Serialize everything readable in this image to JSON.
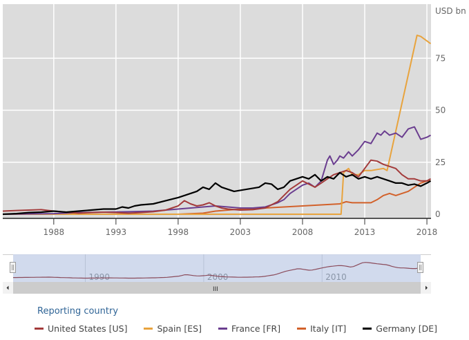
{
  "chart_data": {
    "type": "line",
    "unit_label": "USD bn",
    "ylim": [
      0,
      101
    ],
    "xlim": [
      1983.9,
      2018.33
    ],
    "y_ticks": [
      "0",
      "25",
      "50",
      "75"
    ],
    "y_tick_values": [
      0,
      25,
      50,
      75
    ],
    "x_ticks": [
      "1988",
      "1993",
      "1998",
      "2003",
      "2008",
      "2013",
      "2018"
    ],
    "x_tick_values": [
      1988,
      1993,
      1998,
      2003,
      2008,
      2013,
      2018
    ],
    "grid": true,
    "legend_title": "Reporting country",
    "legend_position": "bottom",
    "series": [
      {
        "name": "United States [US]",
        "color": "#a33a3a",
        "x": [
          1983.9,
          1985,
          1986,
          1987,
          1988,
          1989,
          1990,
          1991,
          1992,
          1993,
          1994,
          1995,
          1996,
          1997,
          1998,
          1998.5,
          1999,
          1999.5,
          2000,
          2000.5,
          2001,
          2001.5,
          2002,
          2003,
          2004,
          2005,
          2006,
          2006.5,
          2007,
          2007.5,
          2008,
          2008.5,
          2009,
          2009.5,
          2010,
          2010.5,
          2011,
          2011.5,
          2012,
          2012.5,
          2013,
          2013.5,
          2014,
          2014.5,
          2015,
          2015.5,
          2016,
          2016.5,
          2017,
          2017.5,
          2018,
          2018.3
        ],
        "values": [
          1.5,
          1.8,
          2,
          2.2,
          1.5,
          1,
          0.5,
          0.8,
          1,
          0.8,
          0.5,
          0.8,
          1.2,
          2,
          4,
          6.5,
          5,
          4,
          4.5,
          5.5,
          4,
          3,
          2.5,
          2,
          2.2,
          3,
          6,
          9,
          12,
          14,
          16,
          14.5,
          13,
          15,
          17,
          19,
          20,
          21,
          20,
          18,
          22,
          26,
          25.5,
          24,
          23,
          22,
          19,
          17,
          17,
          16,
          16,
          17
        ]
      },
      {
        "name": "Spain [ES]",
        "color": "#e8a33d",
        "x": [
          1983.9,
          1990,
          2000,
          2005,
          2008,
          2011.1,
          2011.3,
          2011.7,
          2012,
          2012.5,
          2013,
          2013.5,
          2014,
          2014.5,
          2014.8,
          2017.2,
          2017.5,
          2018.3
        ],
        "values": [
          0,
          0,
          0,
          0,
          0,
          0,
          20,
          22,
          19,
          19,
          21,
          21,
          21.5,
          22,
          21,
          86,
          85.5,
          82
        ]
      },
      {
        "name": "France [FR]",
        "color": "#6a3d8f",
        "x": [
          1983.9,
          1988,
          1990,
          1992,
          1994,
          1996,
          1998,
          1999,
          2000,
          2001,
          2002,
          2003,
          2004,
          2005,
          2006,
          2006.5,
          2007,
          2007.5,
          2008,
          2008.5,
          2009,
          2009.5,
          2010,
          2010.2,
          2010.5,
          2010.8,
          2011,
          2011.3,
          2011.7,
          2012,
          2012.5,
          2013,
          2013.5,
          2014,
          2014.3,
          2014.6,
          2015,
          2015.5,
          2016,
          2016.5,
          2017,
          2017.5,
          2018,
          2018.3
        ],
        "values": [
          0,
          0.3,
          0.8,
          1,
          1.2,
          1.5,
          2.5,
          3,
          3.5,
          4,
          3.5,
          3,
          3,
          3.5,
          5.5,
          7,
          10,
          12,
          14,
          15,
          13,
          16,
          26,
          28,
          24,
          26,
          28,
          27,
          30,
          28,
          31,
          35,
          34,
          39,
          38,
          40,
          38,
          39,
          37,
          41,
          42,
          36,
          37,
          38
        ]
      },
      {
        "name": "Italy [IT]",
        "color": "#d2612a",
        "x": [
          1983.9,
          1990,
          1998,
          2000,
          2000.5,
          2001,
          2002,
          2003,
          2005,
          2008,
          2011,
          2011.5,
          2012,
          2012.5,
          2013,
          2013.5,
          2014,
          2014.5,
          2015,
          2015.5,
          2016,
          2016.5,
          2017,
          2017.5,
          2018,
          2018.3
        ],
        "values": [
          0,
          0,
          0,
          0.5,
          1,
          1.5,
          2,
          2.5,
          3,
          4,
          5,
          6,
          5.5,
          5.5,
          5.5,
          5.5,
          7,
          9,
          10,
          9,
          10,
          11,
          13,
          15,
          16,
          16
        ]
      },
      {
        "name": "Germany [DE]",
        "color": "#000000",
        "x": [
          1983.9,
          1985,
          1986,
          1987,
          1988,
          1989,
          1990,
          1991,
          1992,
          1993,
          1993.5,
          1994,
          1994.5,
          1995,
          1996,
          1997,
          1998,
          1999,
          1999.5,
          2000,
          2000.5,
          2001,
          2001.5,
          2002,
          2002.5,
          2003,
          2003.5,
          2004,
          2004.5,
          2005,
          2005.5,
          2006,
          2006.5,
          2007,
          2007.5,
          2008,
          2008.5,
          2009,
          2009.5,
          2010,
          2010.5,
          2011,
          2011.5,
          2012,
          2012.5,
          2013,
          2013.5,
          2014,
          2014.5,
          2015,
          2015.5,
          2016,
          2016.5,
          2017,
          2017.5,
          2018,
          2018.3
        ],
        "values": [
          0,
          0.3,
          0.8,
          1,
          1.5,
          1,
          1.5,
          2,
          2.5,
          2.5,
          3.5,
          3,
          4,
          4.5,
          5,
          6.5,
          8,
          10,
          11,
          13,
          12,
          15,
          13,
          12,
          11,
          11.5,
          12,
          12.5,
          13,
          15,
          14.5,
          12,
          13,
          16,
          17,
          18,
          17,
          19,
          16,
          18,
          17,
          20,
          18,
          19,
          17,
          18,
          17,
          18,
          17,
          16,
          15,
          15,
          14,
          14.5,
          13.5,
          15,
          16
        ]
      }
    ]
  },
  "navigator": {
    "labels": [
      "1990",
      "2000",
      "2010"
    ],
    "label_values": [
      1990,
      2000,
      2010
    ],
    "xlim": [
      1983.9,
      2018.33
    ],
    "series_color": "#8a4a5a",
    "scroll_center_glyph": "III"
  },
  "legend": {
    "title": "Reporting country",
    "items": [
      {
        "label": "United States [US]",
        "color": "#a33a3a"
      },
      {
        "label": "Spain [ES]",
        "color": "#e8a33d"
      },
      {
        "label": "France [FR]",
        "color": "#6a3d8f"
      },
      {
        "label": "Italy [IT]",
        "color": "#d2612a"
      },
      {
        "label": "Germany [DE]",
        "color": "#000000"
      }
    ]
  }
}
